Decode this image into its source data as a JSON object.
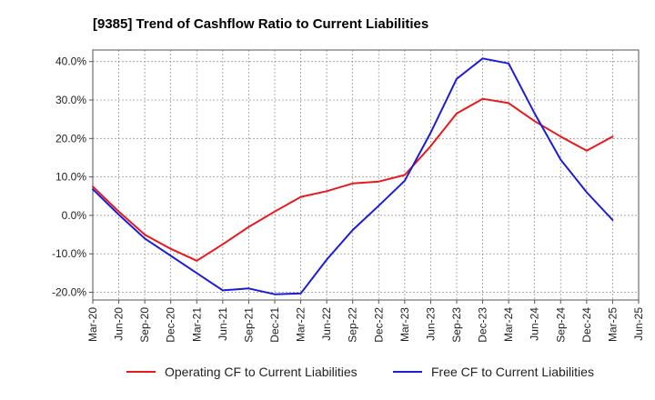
{
  "chart_data": {
    "type": "line",
    "title": "[9385]  Trend of Cashflow Ratio to Current Liabilities",
    "xlabel": "",
    "ylabel": "",
    "ylim": [
      -22,
      43
    ],
    "yticks": [
      -20,
      -10,
      0,
      10,
      20,
      30,
      40
    ],
    "ytick_labels": [
      "-20.0%",
      "-10.0%",
      "0.0%",
      "10.0%",
      "20.0%",
      "30.0%",
      "40.0%"
    ],
    "x_tick_labels": [
      "Mar-20",
      "Jun-20",
      "Sep-20",
      "Dec-20",
      "Mar-21",
      "Jun-21",
      "Sep-21",
      "Dec-21",
      "Mar-22",
      "Jun-22",
      "Sep-22",
      "Dec-22",
      "Mar-23",
      "Jun-23",
      "Sep-23",
      "Dec-23",
      "Mar-24",
      "Jun-24",
      "Sep-24",
      "Dec-24",
      "Mar-25",
      "Jun-25"
    ],
    "categories": [
      "Mar-20",
      "Jun-20",
      "Sep-20",
      "Dec-20",
      "Mar-21",
      "Jun-21",
      "Sep-21",
      "Dec-21",
      "Mar-22",
      "Jun-22",
      "Sep-22",
      "Dec-22",
      "Mar-23",
      "Jun-23",
      "Sep-23",
      "Dec-23",
      "Mar-24",
      "Jun-24",
      "Sep-24",
      "Dec-24",
      "Mar-25"
    ],
    "grid": true,
    "legend_position": "bottom",
    "series": [
      {
        "name": "Operating CF to Current Liabilities",
        "color": "#e8191c",
        "values": [
          7.5,
          1.0,
          -5.0,
          -8.7,
          -11.8,
          -7.5,
          -3.0,
          1.0,
          4.8,
          6.3,
          8.3,
          8.8,
          10.5,
          18.0,
          26.5,
          30.3,
          29.2,
          24.5,
          20.5,
          16.8,
          20.5
        ]
      },
      {
        "name": "Free CF to Current Liabilities",
        "color": "#1c1cd4",
        "values": [
          6.8,
          0.2,
          -6.0,
          -10.5,
          -15.0,
          -19.5,
          -19.0,
          -20.5,
          -20.3,
          -11.5,
          -3.8,
          2.5,
          9.0,
          21.5,
          35.5,
          40.8,
          39.5,
          26.5,
          14.5,
          6.0,
          -1.2
        ]
      }
    ]
  }
}
